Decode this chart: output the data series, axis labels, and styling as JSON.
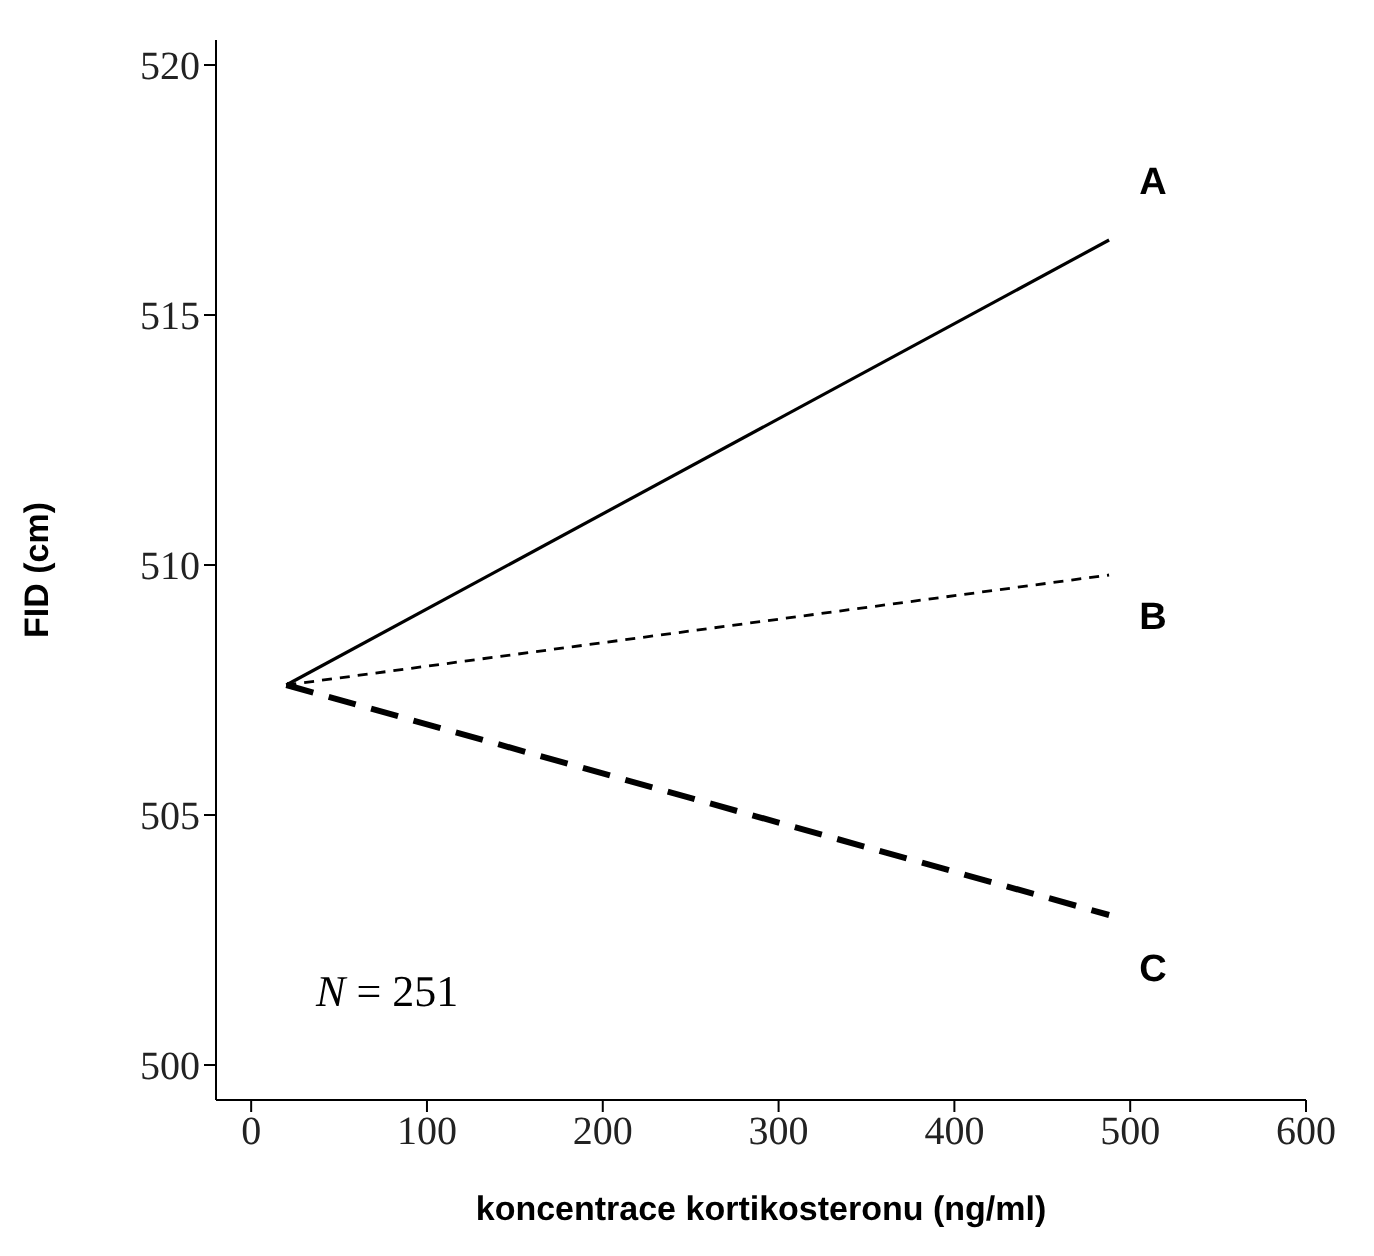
{
  "chart_data": {
    "type": "line",
    "xlabel": "koncentrace kortikosteronu (ng/ml)",
    "ylabel": "FID (cm)",
    "xlim": [
      -20,
      600
    ],
    "xticks": [
      0,
      100,
      200,
      300,
      400,
      500,
      600
    ],
    "ylim": [
      499.3,
      520.5
    ],
    "yticks": [
      500,
      505,
      510,
      515,
      520
    ],
    "grid": false,
    "x": [
      20,
      488
    ],
    "legend": false,
    "marker": "none",
    "series": [
      {
        "name": "A",
        "color": "#000000",
        "line_style": "solid",
        "values": [
          507.6,
          516.5
        ]
      },
      {
        "name": "B",
        "color": "#000000",
        "line_style": "dotted",
        "values": [
          507.6,
          509.8
        ]
      },
      {
        "name": "C",
        "color": "#000000",
        "line_style": "dashed",
        "values": [
          507.6,
          503
        ]
      }
    ],
    "annotations": [
      "N = 251"
    ]
  }
}
